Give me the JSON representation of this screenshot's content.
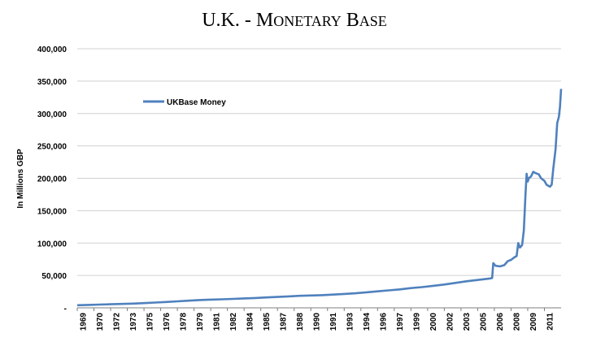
{
  "chart_data": {
    "type": "line",
    "title": "U.K. - Monetary Base",
    "title_parts": [
      "U.K. - ",
      "M",
      "ONETARY",
      " ",
      "B",
      "ASE"
    ],
    "xlabel": "",
    "ylabel": "In Millions GBP",
    "ylim": [
      0,
      400000
    ],
    "y_ticks": [
      "-",
      "50,000",
      "100,000",
      "150,000",
      "200,000",
      "250,000",
      "300,000",
      "350,000",
      "400,000"
    ],
    "x_tick_labels": [
      "1969",
      "1970",
      "1972",
      "1973",
      "1975",
      "1976",
      "1978",
      "1979",
      "1981",
      "1982",
      "1984",
      "1985",
      "1987",
      "1988",
      "1990",
      "1991",
      "1993",
      "1994",
      "1996",
      "1997",
      "1999",
      "2000",
      "2002",
      "2003",
      "2005",
      "2006",
      "2008",
      "2009",
      "2011"
    ],
    "xlim": [
      1969.0,
      2012.5
    ],
    "grid": "horizontal",
    "legend_placement": "top-left",
    "series": [
      {
        "name": "UKBase Money",
        "color": "#4F81BD",
        "points": [
          [
            1969.0,
            4000
          ],
          [
            1970.0,
            4500
          ],
          [
            1971.0,
            5000
          ],
          [
            1972.0,
            5500
          ],
          [
            1973.0,
            6000
          ],
          [
            1974.0,
            6500
          ],
          [
            1975.0,
            7300
          ],
          [
            1976.0,
            8200
          ],
          [
            1977.0,
            9000
          ],
          [
            1978.0,
            10000
          ],
          [
            1979.0,
            11000
          ],
          [
            1980.0,
            12000
          ],
          [
            1981.0,
            12700
          ],
          [
            1982.0,
            13200
          ],
          [
            1983.0,
            13800
          ],
          [
            1984.0,
            14500
          ],
          [
            1985.0,
            15200
          ],
          [
            1986.0,
            16000
          ],
          [
            1987.0,
            16800
          ],
          [
            1988.0,
            17700
          ],
          [
            1989.0,
            18500
          ],
          [
            1990.0,
            19000
          ],
          [
            1991.0,
            19500
          ],
          [
            1992.0,
            20500
          ],
          [
            1993.0,
            21500
          ],
          [
            1994.0,
            22500
          ],
          [
            1995.0,
            24000
          ],
          [
            1996.0,
            25500
          ],
          [
            1997.0,
            27000
          ],
          [
            1998.0,
            28500
          ],
          [
            1999.0,
            30500
          ],
          [
            2000.0,
            32000
          ],
          [
            2001.0,
            34000
          ],
          [
            2002.0,
            36000
          ],
          [
            2003.0,
            38500
          ],
          [
            2004.0,
            41000
          ],
          [
            2005.0,
            43000
          ],
          [
            2006.0,
            45000
          ],
          [
            2006.3,
            46000
          ],
          [
            2006.4,
            69000
          ],
          [
            2006.6,
            65000
          ],
          [
            2007.0,
            64000
          ],
          [
            2007.4,
            66000
          ],
          [
            2007.7,
            72000
          ],
          [
            2008.0,
            74000
          ],
          [
            2008.3,
            78000
          ],
          [
            2008.5,
            80000
          ],
          [
            2008.65,
            100000
          ],
          [
            2008.8,
            93000
          ],
          [
            2009.0,
            97000
          ],
          [
            2009.15,
            120000
          ],
          [
            2009.3,
            175000
          ],
          [
            2009.4,
            207000
          ],
          [
            2009.5,
            195000
          ],
          [
            2009.6,
            200000
          ],
          [
            2009.8,
            203000
          ],
          [
            2010.0,
            210000
          ],
          [
            2010.2,
            208000
          ],
          [
            2010.5,
            206000
          ],
          [
            2010.7,
            200000
          ],
          [
            2011.0,
            196000
          ],
          [
            2011.2,
            190000
          ],
          [
            2011.5,
            187000
          ],
          [
            2011.65,
            190000
          ],
          [
            2011.8,
            215000
          ],
          [
            2012.0,
            245000
          ],
          [
            2012.15,
            285000
          ],
          [
            2012.3,
            295000
          ],
          [
            2012.4,
            310000
          ],
          [
            2012.5,
            338000
          ]
        ]
      }
    ]
  }
}
